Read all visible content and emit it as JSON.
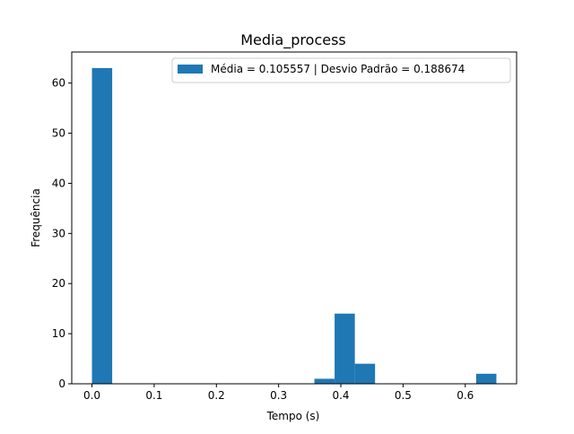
{
  "chart_data": {
    "type": "bar",
    "title": "Media_process",
    "xlabel": "Tempo (s)",
    "ylabel": "Frequência",
    "legend": {
      "label": "Média = 0.105557 | Desvio Padrão = 0.188674",
      "placement": "top-right"
    },
    "xlim": [
      -0.0325,
      0.6825
    ],
    "ylim": [
      0,
      66.2
    ],
    "x_ticks": [
      0.0,
      0.1,
      0.2,
      0.3,
      0.4,
      0.5,
      0.6
    ],
    "x_tick_labels": [
      "0.0",
      "0.1",
      "0.2",
      "0.3",
      "0.4",
      "0.5",
      "0.6"
    ],
    "y_ticks": [
      0,
      10,
      20,
      30,
      40,
      50,
      60
    ],
    "y_tick_labels": [
      "0",
      "10",
      "20",
      "30",
      "40",
      "50",
      "60"
    ],
    "grid": false,
    "bins": [
      {
        "x_start": 0.0,
        "x_end": 0.0325,
        "count": 63
      },
      {
        "x_start": 0.0325,
        "x_end": 0.065,
        "count": 0
      },
      {
        "x_start": 0.065,
        "x_end": 0.0975,
        "count": 0
      },
      {
        "x_start": 0.0975,
        "x_end": 0.13,
        "count": 0
      },
      {
        "x_start": 0.13,
        "x_end": 0.1625,
        "count": 0
      },
      {
        "x_start": 0.1625,
        "x_end": 0.195,
        "count": 0
      },
      {
        "x_start": 0.195,
        "x_end": 0.2275,
        "count": 0
      },
      {
        "x_start": 0.2275,
        "x_end": 0.26,
        "count": 0
      },
      {
        "x_start": 0.26,
        "x_end": 0.2925,
        "count": 0
      },
      {
        "x_start": 0.2925,
        "x_end": 0.325,
        "count": 0
      },
      {
        "x_start": 0.325,
        "x_end": 0.3575,
        "count": 0
      },
      {
        "x_start": 0.3575,
        "x_end": 0.39,
        "count": 1
      },
      {
        "x_start": 0.39,
        "x_end": 0.4225,
        "count": 14
      },
      {
        "x_start": 0.4225,
        "x_end": 0.455,
        "count": 4
      },
      {
        "x_start": 0.455,
        "x_end": 0.4875,
        "count": 0
      },
      {
        "x_start": 0.4875,
        "x_end": 0.52,
        "count": 0
      },
      {
        "x_start": 0.52,
        "x_end": 0.5525,
        "count": 0
      },
      {
        "x_start": 0.5525,
        "x_end": 0.585,
        "count": 0
      },
      {
        "x_start": 0.585,
        "x_end": 0.6175,
        "count": 0
      },
      {
        "x_start": 0.6175,
        "x_end": 0.65,
        "count": 2
      }
    ],
    "colors": {
      "bar": "#1f77b4",
      "axes": "#000000",
      "background": "#ffffff",
      "legend_border": "#cccccc"
    }
  }
}
